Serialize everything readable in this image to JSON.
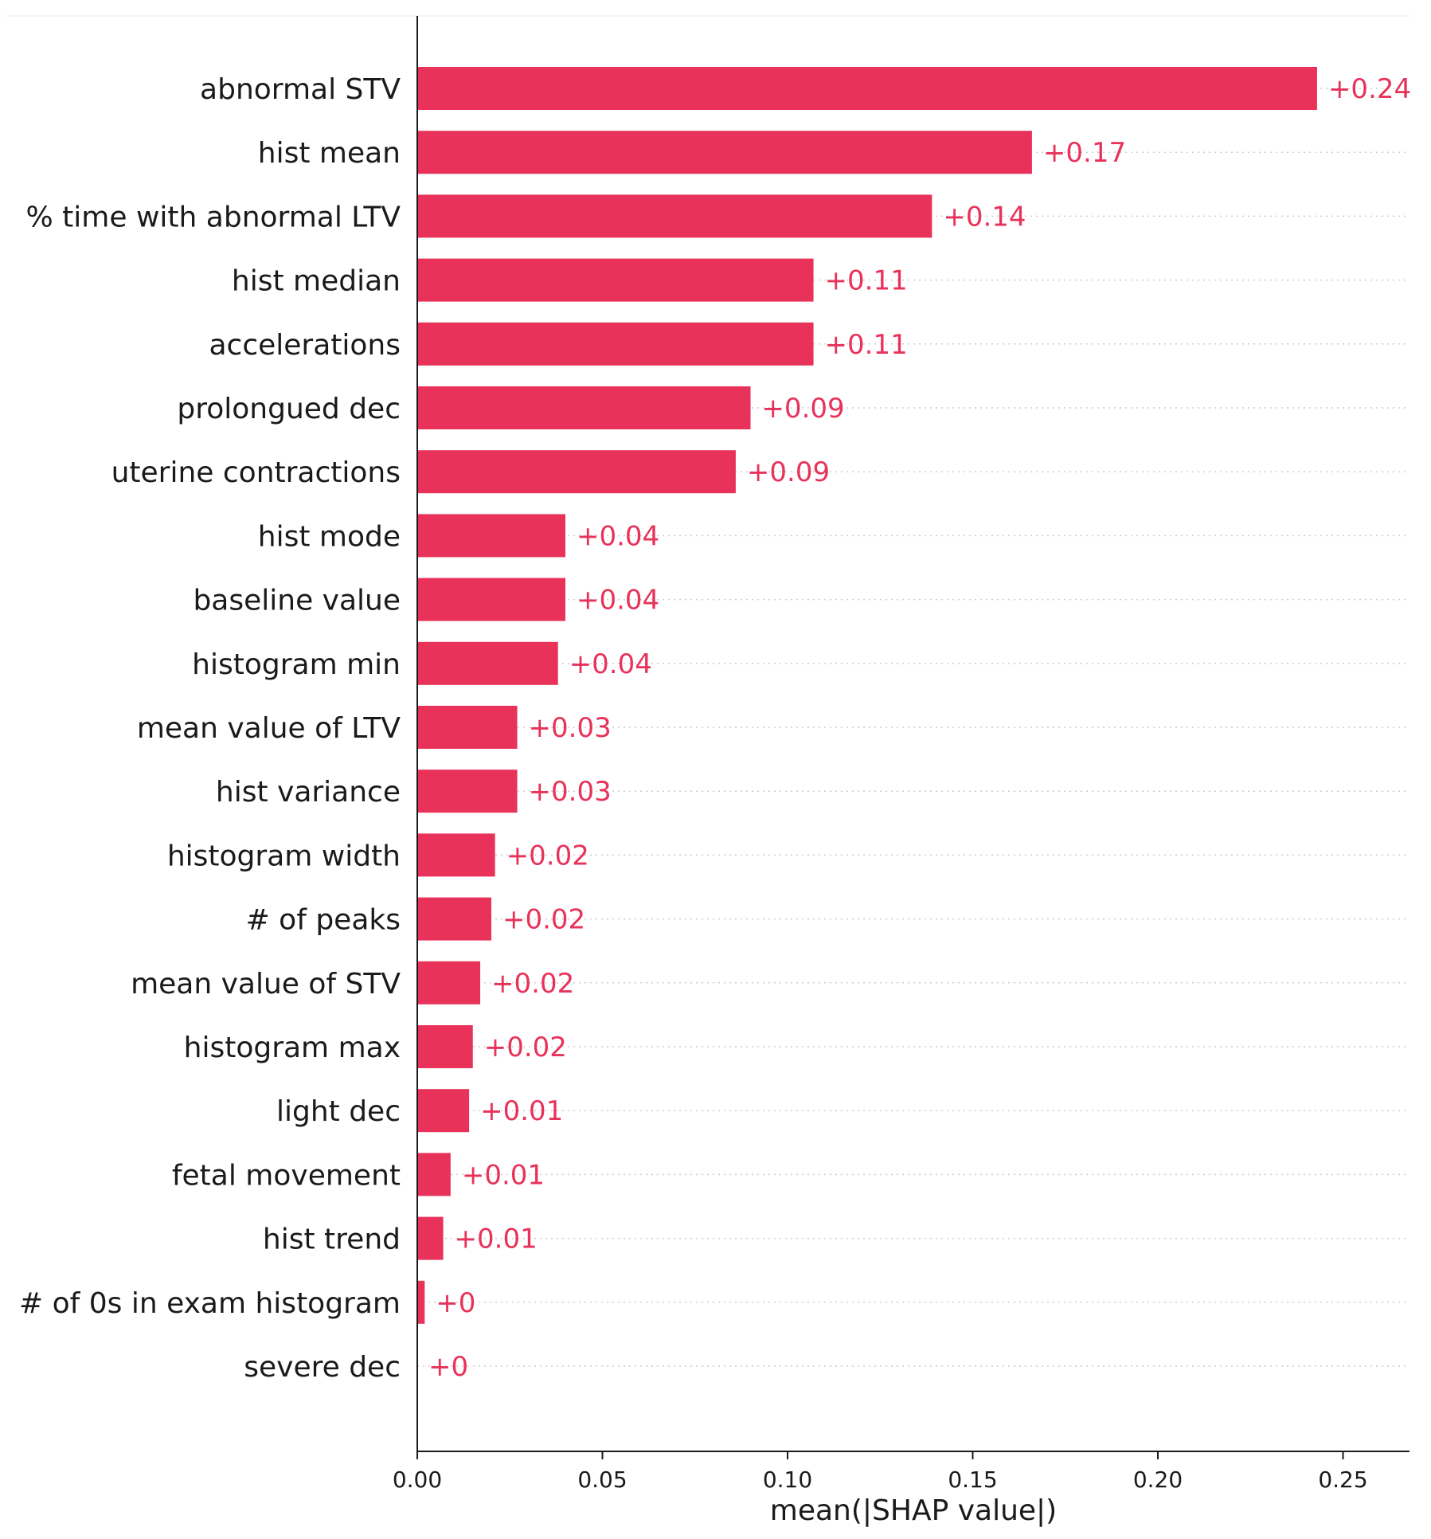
{
  "chart_data": {
    "type": "bar",
    "orientation": "horizontal",
    "title": "",
    "xlabel": "mean(|SHAP value|)",
    "ylabel": "",
    "xlim": [
      0,
      0.268
    ],
    "xticks": [
      0.0,
      0.05,
      0.1,
      0.15,
      0.2,
      0.25
    ],
    "xtick_labels": [
      "0.00",
      "0.05",
      "0.10",
      "0.15",
      "0.20",
      "0.25"
    ],
    "grid": "dotted horizontal guide lines",
    "bar_color": "#e8325a",
    "value_label_color": "#e8325a",
    "categories": [
      "abnormal STV",
      "hist mean",
      "% time with abnormal LTV",
      "hist median",
      "accelerations",
      "prolongued dec",
      "uterine contractions",
      "hist mode",
      "baseline value",
      "histogram min",
      "mean value of LTV",
      "hist variance",
      "histogram width",
      "# of peaks",
      "mean value of STV",
      "histogram max",
      "light dec",
      "fetal movement",
      "hist trend",
      "# of 0s in exam histogram",
      "severe dec"
    ],
    "values": [
      0.243,
      0.166,
      0.139,
      0.107,
      0.107,
      0.09,
      0.086,
      0.04,
      0.04,
      0.038,
      0.027,
      0.027,
      0.021,
      0.02,
      0.017,
      0.015,
      0.014,
      0.009,
      0.007,
      0.002,
      0.0
    ],
    "value_labels": [
      "+0.24",
      "+0.17",
      "+0.14",
      "+0.11",
      "+0.11",
      "+0.09",
      "+0.09",
      "+0.04",
      "+0.04",
      "+0.04",
      "+0.03",
      "+0.03",
      "+0.02",
      "+0.02",
      "+0.02",
      "+0.02",
      "+0.01",
      "+0.01",
      "+0.01",
      "+0",
      "+0"
    ]
  }
}
